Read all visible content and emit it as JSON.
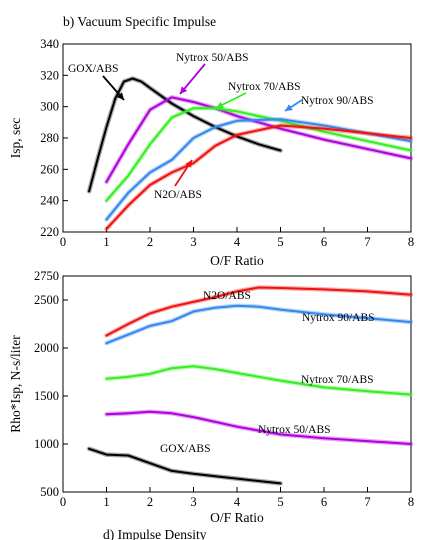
{
  "chart_data": [
    {
      "type": "line",
      "title": "b) Vacuum Specific Impulse",
      "xlabel": "O/F Ratio",
      "ylabel": "Isp, sec",
      "xlim": [
        0,
        8
      ],
      "ylim": [
        220,
        340
      ],
      "xticks": [
        0,
        1,
        2,
        3,
        4,
        5,
        6,
        7,
        8
      ],
      "yticks": [
        220,
        240,
        260,
        280,
        300,
        320,
        340
      ],
      "grid": false,
      "legend": "none",
      "series": [
        {
          "name": "GOX/ABS",
          "color": "#000000",
          "x": [
            0.6,
            0.8,
            1.0,
            1.2,
            1.4,
            1.6,
            1.8,
            2.0,
            2.5,
            3.0,
            3.5,
            4.0,
            4.5,
            5.0
          ],
          "y": [
            246,
            267,
            287,
            305,
            316,
            318,
            316,
            312,
            302,
            294,
            287,
            281,
            276,
            272
          ]
        },
        {
          "name": "Nytrox 50/ABS",
          "color": "#b000e0",
          "x": [
            1.0,
            1.5,
            2.0,
            2.5,
            3.0,
            3.5,
            4.0,
            5.0,
            6.0,
            7.0,
            8.0
          ],
          "y": [
            252,
            276,
            298,
            306,
            303,
            299,
            294,
            286,
            279,
            273,
            267
          ]
        },
        {
          "name": "Nytrox 70/ABS",
          "color": "#33ee22",
          "x": [
            1.0,
            1.5,
            2.0,
            2.5,
            3.0,
            3.5,
            4.0,
            5.0,
            6.0,
            7.0,
            8.0
          ],
          "y": [
            240,
            256,
            276,
            293,
            299,
            299,
            297,
            291,
            284,
            278,
            272
          ]
        },
        {
          "name": "Nytrox 90/ABS",
          "color": "#3388ee",
          "x": [
            1.0,
            1.5,
            2.0,
            2.5,
            3.0,
            3.5,
            4.0,
            5.0,
            6.0,
            7.0,
            8.0
          ],
          "y": [
            228,
            245,
            258,
            266,
            280,
            287,
            291,
            292,
            288,
            283,
            278
          ]
        },
        {
          "name": "N2O/ABS",
          "color": "#ee1111",
          "x": [
            1.0,
            1.5,
            2.0,
            2.5,
            3.0,
            3.5,
            4.0,
            5.0,
            6.0,
            7.0,
            8.0
          ],
          "y": [
            222,
            237,
            250,
            258,
            264,
            275,
            282,
            288,
            286,
            283,
            280
          ]
        }
      ],
      "annotations": [
        {
          "text": "GOX/ABS",
          "series": "GOX/ABS"
        },
        {
          "text": "Nytrox 50/ABS",
          "series": "Nytrox 50/ABS"
        },
        {
          "text": "Nytrox 70/ABS",
          "series": "Nytrox 70/ABS"
        },
        {
          "text": "Nytrox 90/ABS",
          "series": "Nytrox 90/ABS"
        },
        {
          "text": "N2O/ABS",
          "series": "N2O/ABS"
        }
      ]
    },
    {
      "type": "line",
      "title": "d) Impulse Density",
      "xlabel": "O/F Ratio",
      "ylabel": "Rho*Isp, N-s/liter",
      "xlim": [
        0,
        8
      ],
      "ylim": [
        500,
        2750
      ],
      "xticks": [
        0,
        1,
        2,
        3,
        4,
        5,
        6,
        7,
        8
      ],
      "yticks": [
        500,
        1000,
        1500,
        2000,
        2500,
        2750
      ],
      "grid": false,
      "legend": "none",
      "series": [
        {
          "name": "N2O/ABS",
          "color": "#ee1111",
          "x": [
            1.0,
            1.5,
            2.0,
            2.5,
            3.0,
            3.5,
            4.0,
            4.5,
            5.0,
            6.0,
            7.0,
            8.0
          ],
          "y": [
            2130,
            2250,
            2360,
            2430,
            2480,
            2530,
            2590,
            2630,
            2625,
            2610,
            2590,
            2555
          ]
        },
        {
          "name": "Nytrox 90/ABS",
          "color": "#3388ee",
          "x": [
            1.0,
            1.5,
            2.0,
            2.5,
            3.0,
            3.5,
            4.0,
            4.5,
            5.0,
            6.0,
            7.0,
            8.0
          ],
          "y": [
            2050,
            2140,
            2230,
            2280,
            2380,
            2420,
            2440,
            2430,
            2400,
            2350,
            2310,
            2270
          ]
        },
        {
          "name": "Nytrox 70/ABS",
          "color": "#33ee22",
          "x": [
            1.0,
            1.5,
            2.0,
            2.5,
            3.0,
            3.5,
            4.0,
            4.5,
            5.0,
            6.0,
            7.0,
            8.0
          ],
          "y": [
            1680,
            1700,
            1730,
            1790,
            1810,
            1780,
            1740,
            1700,
            1660,
            1590,
            1550,
            1515
          ]
        },
        {
          "name": "Nytrox 50/ABS",
          "color": "#b000e0",
          "x": [
            1.0,
            1.5,
            2.0,
            2.5,
            3.0,
            3.5,
            4.0,
            4.5,
            5.0,
            6.0,
            7.0,
            8.0
          ],
          "y": [
            1310,
            1320,
            1335,
            1320,
            1280,
            1230,
            1180,
            1140,
            1100,
            1060,
            1030,
            1000
          ]
        },
        {
          "name": "GOX/ABS",
          "color": "#000000",
          "x": [
            0.6,
            1.0,
            1.5,
            2.0,
            2.5,
            3.0,
            3.5,
            4.0,
            4.5,
            5.0
          ],
          "y": [
            950,
            890,
            880,
            800,
            720,
            690,
            665,
            640,
            615,
            590
          ]
        }
      ],
      "annotations": [
        {
          "text": "N2O/ABS",
          "series": "N2O/ABS"
        },
        {
          "text": "Nytrox 90/ABS",
          "series": "Nytrox 90/ABS"
        },
        {
          "text": "Nytrox 70/ABS",
          "series": "Nytrox 70/ABS"
        },
        {
          "text": "Nytrox 50/ABS",
          "series": "Nytrox 50/ABS"
        },
        {
          "text": "GOX/ABS",
          "series": "GOX/ABS"
        }
      ]
    }
  ]
}
